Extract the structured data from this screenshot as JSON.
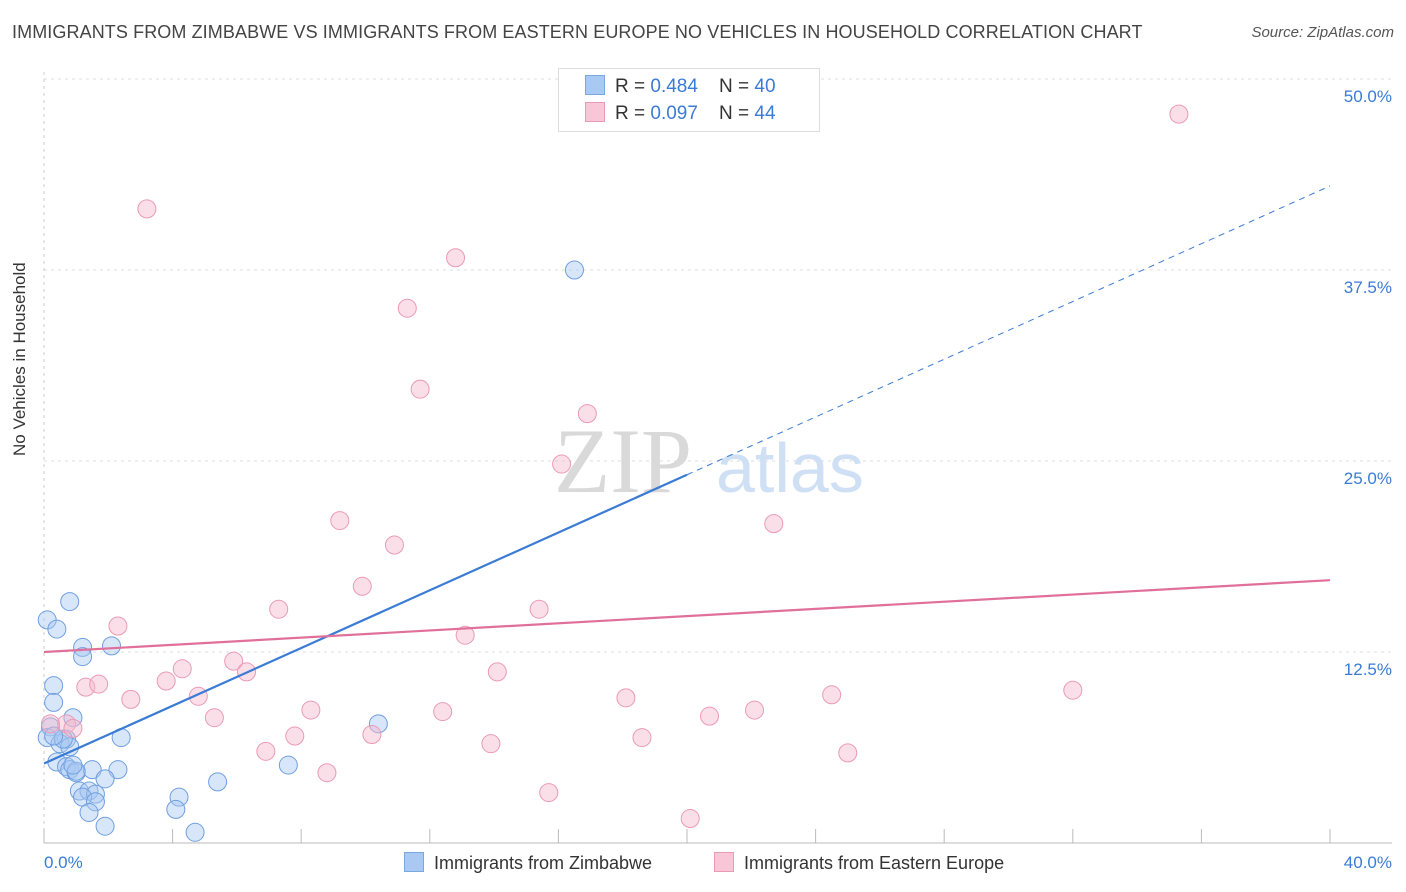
{
  "title": "IMMIGRANTS FROM ZIMBABWE VS IMMIGRANTS FROM EASTERN EUROPE NO VEHICLES IN HOUSEHOLD CORRELATION CHART",
  "source": "Source: ZipAtlas.com",
  "watermark": {
    "zip": "ZIP",
    "atlas": "atlas"
  },
  "colors": {
    "blue": "#3a7bd5",
    "blue_fill": "#a9c8f2",
    "pink": "#e0709a",
    "pink_fill": "#f5b8cb"
  },
  "legend": {
    "r1_label": "R = ",
    "r1_value": "0.484",
    "n1_label": "N = ",
    "n1_value": "40",
    "r2_label": "R = ",
    "r2_value": "0.097",
    "n2_label": "N = ",
    "n2_value": "44"
  },
  "bottom_legend": {
    "series1": "Immigrants from Zimbabwe",
    "series2": "Immigrants from Eastern Europe"
  },
  "chart_data": {
    "type": "scatter",
    "title": "IMMIGRANTS FROM ZIMBABWE VS IMMIGRANTS FROM EASTERN EUROPE NO VEHICLES IN HOUSEHOLD CORRELATION CHART",
    "ylabel": "No Vehicles in Household",
    "xlabel": "",
    "xlim": [
      0,
      40
    ],
    "ylim": [
      0,
      52
    ],
    "x_tick_labels": {
      "min": "0.0%",
      "max": "40.0%"
    },
    "y_ticks": [
      {
        "value": 12.5,
        "label": "12.5%"
      },
      {
        "value": 25.0,
        "label": "25.0%"
      },
      {
        "value": 37.5,
        "label": "37.5%"
      },
      {
        "value": 50.0,
        "label": "50.0%"
      }
    ],
    "series": [
      {
        "name": "Immigrants from Zimbabwe",
        "R": 0.484,
        "N": 40,
        "trend": {
          "x0": 0,
          "y0": 5.2,
          "x1": 20,
          "y1": 24.1,
          "dash_x1": 40,
          "dash_y1": 43.0
        },
        "points": [
          {
            "x": 0.1,
            "y": 14.6
          },
          {
            "x": 0.4,
            "y": 14.0
          },
          {
            "x": 0.8,
            "y": 15.8
          },
          {
            "x": 1.2,
            "y": 12.8
          },
          {
            "x": 2.1,
            "y": 12.9
          },
          {
            "x": 1.2,
            "y": 12.2
          },
          {
            "x": 0.3,
            "y": 10.3
          },
          {
            "x": 0.3,
            "y": 9.2
          },
          {
            "x": 0.9,
            "y": 8.2
          },
          {
            "x": 0.2,
            "y": 7.6
          },
          {
            "x": 0.1,
            "y": 6.9
          },
          {
            "x": 0.7,
            "y": 6.8
          },
          {
            "x": 0.5,
            "y": 6.5
          },
          {
            "x": 0.8,
            "y": 6.3
          },
          {
            "x": 2.4,
            "y": 6.9
          },
          {
            "x": 0.4,
            "y": 5.3
          },
          {
            "x": 0.7,
            "y": 5.0
          },
          {
            "x": 0.8,
            "y": 4.8
          },
          {
            "x": 1.0,
            "y": 4.6
          },
          {
            "x": 1.5,
            "y": 4.8
          },
          {
            "x": 2.3,
            "y": 4.8
          },
          {
            "x": 1.9,
            "y": 4.2
          },
          {
            "x": 1.1,
            "y": 3.4
          },
          {
            "x": 1.4,
            "y": 3.4
          },
          {
            "x": 1.6,
            "y": 3.2
          },
          {
            "x": 1.2,
            "y": 3.0
          },
          {
            "x": 1.6,
            "y": 2.7
          },
          {
            "x": 1.4,
            "y": 2.0
          },
          {
            "x": 4.2,
            "y": 3.0
          },
          {
            "x": 4.1,
            "y": 2.2
          },
          {
            "x": 5.4,
            "y": 4.0
          },
          {
            "x": 7.6,
            "y": 5.1
          },
          {
            "x": 10.4,
            "y": 7.8
          },
          {
            "x": 1.9,
            "y": 1.1
          },
          {
            "x": 4.7,
            "y": 0.7
          },
          {
            "x": 16.5,
            "y": 37.5
          },
          {
            "x": 0.6,
            "y": 6.8
          },
          {
            "x": 0.3,
            "y": 7.0
          },
          {
            "x": 1.0,
            "y": 4.7
          },
          {
            "x": 0.9,
            "y": 5.1
          }
        ]
      },
      {
        "name": "Immigrants from Eastern Europe",
        "R": 0.097,
        "N": 44,
        "trend": {
          "x0": 0,
          "y0": 12.5,
          "x1": 40,
          "y1": 17.2
        },
        "points": [
          {
            "x": 3.2,
            "y": 41.5
          },
          {
            "x": 35.3,
            "y": 47.7
          },
          {
            "x": 12.8,
            "y": 38.3
          },
          {
            "x": 11.3,
            "y": 35.0
          },
          {
            "x": 11.7,
            "y": 29.7
          },
          {
            "x": 16.9,
            "y": 28.1
          },
          {
            "x": 16.1,
            "y": 24.8
          },
          {
            "x": 22.7,
            "y": 20.9
          },
          {
            "x": 9.2,
            "y": 21.1
          },
          {
            "x": 10.9,
            "y": 19.5
          },
          {
            "x": 9.9,
            "y": 16.8
          },
          {
            "x": 7.3,
            "y": 15.3
          },
          {
            "x": 15.4,
            "y": 15.3
          },
          {
            "x": 13.1,
            "y": 13.6
          },
          {
            "x": 2.3,
            "y": 14.2
          },
          {
            "x": 5.9,
            "y": 11.9
          },
          {
            "x": 6.3,
            "y": 11.2
          },
          {
            "x": 4.3,
            "y": 11.4
          },
          {
            "x": 14.1,
            "y": 11.2
          },
          {
            "x": 3.8,
            "y": 10.6
          },
          {
            "x": 1.3,
            "y": 10.2
          },
          {
            "x": 1.7,
            "y": 10.4
          },
          {
            "x": 2.7,
            "y": 9.4
          },
          {
            "x": 4.8,
            "y": 9.6
          },
          {
            "x": 18.1,
            "y": 9.5
          },
          {
            "x": 24.5,
            "y": 9.7
          },
          {
            "x": 32.0,
            "y": 10.0
          },
          {
            "x": 8.3,
            "y": 8.7
          },
          {
            "x": 12.4,
            "y": 8.6
          },
          {
            "x": 5.3,
            "y": 8.2
          },
          {
            "x": 20.7,
            "y": 8.3
          },
          {
            "x": 22.1,
            "y": 8.7
          },
          {
            "x": 0.7,
            "y": 7.8
          },
          {
            "x": 0.9,
            "y": 7.5
          },
          {
            "x": 0.2,
            "y": 7.8
          },
          {
            "x": 10.2,
            "y": 7.1
          },
          {
            "x": 7.8,
            "y": 7.0
          },
          {
            "x": 18.6,
            "y": 6.9
          },
          {
            "x": 13.9,
            "y": 6.5
          },
          {
            "x": 6.9,
            "y": 6.0
          },
          {
            "x": 25.0,
            "y": 5.9
          },
          {
            "x": 8.8,
            "y": 4.6
          },
          {
            "x": 15.7,
            "y": 3.3
          },
          {
            "x": 20.1,
            "y": 1.6
          }
        ]
      }
    ]
  }
}
